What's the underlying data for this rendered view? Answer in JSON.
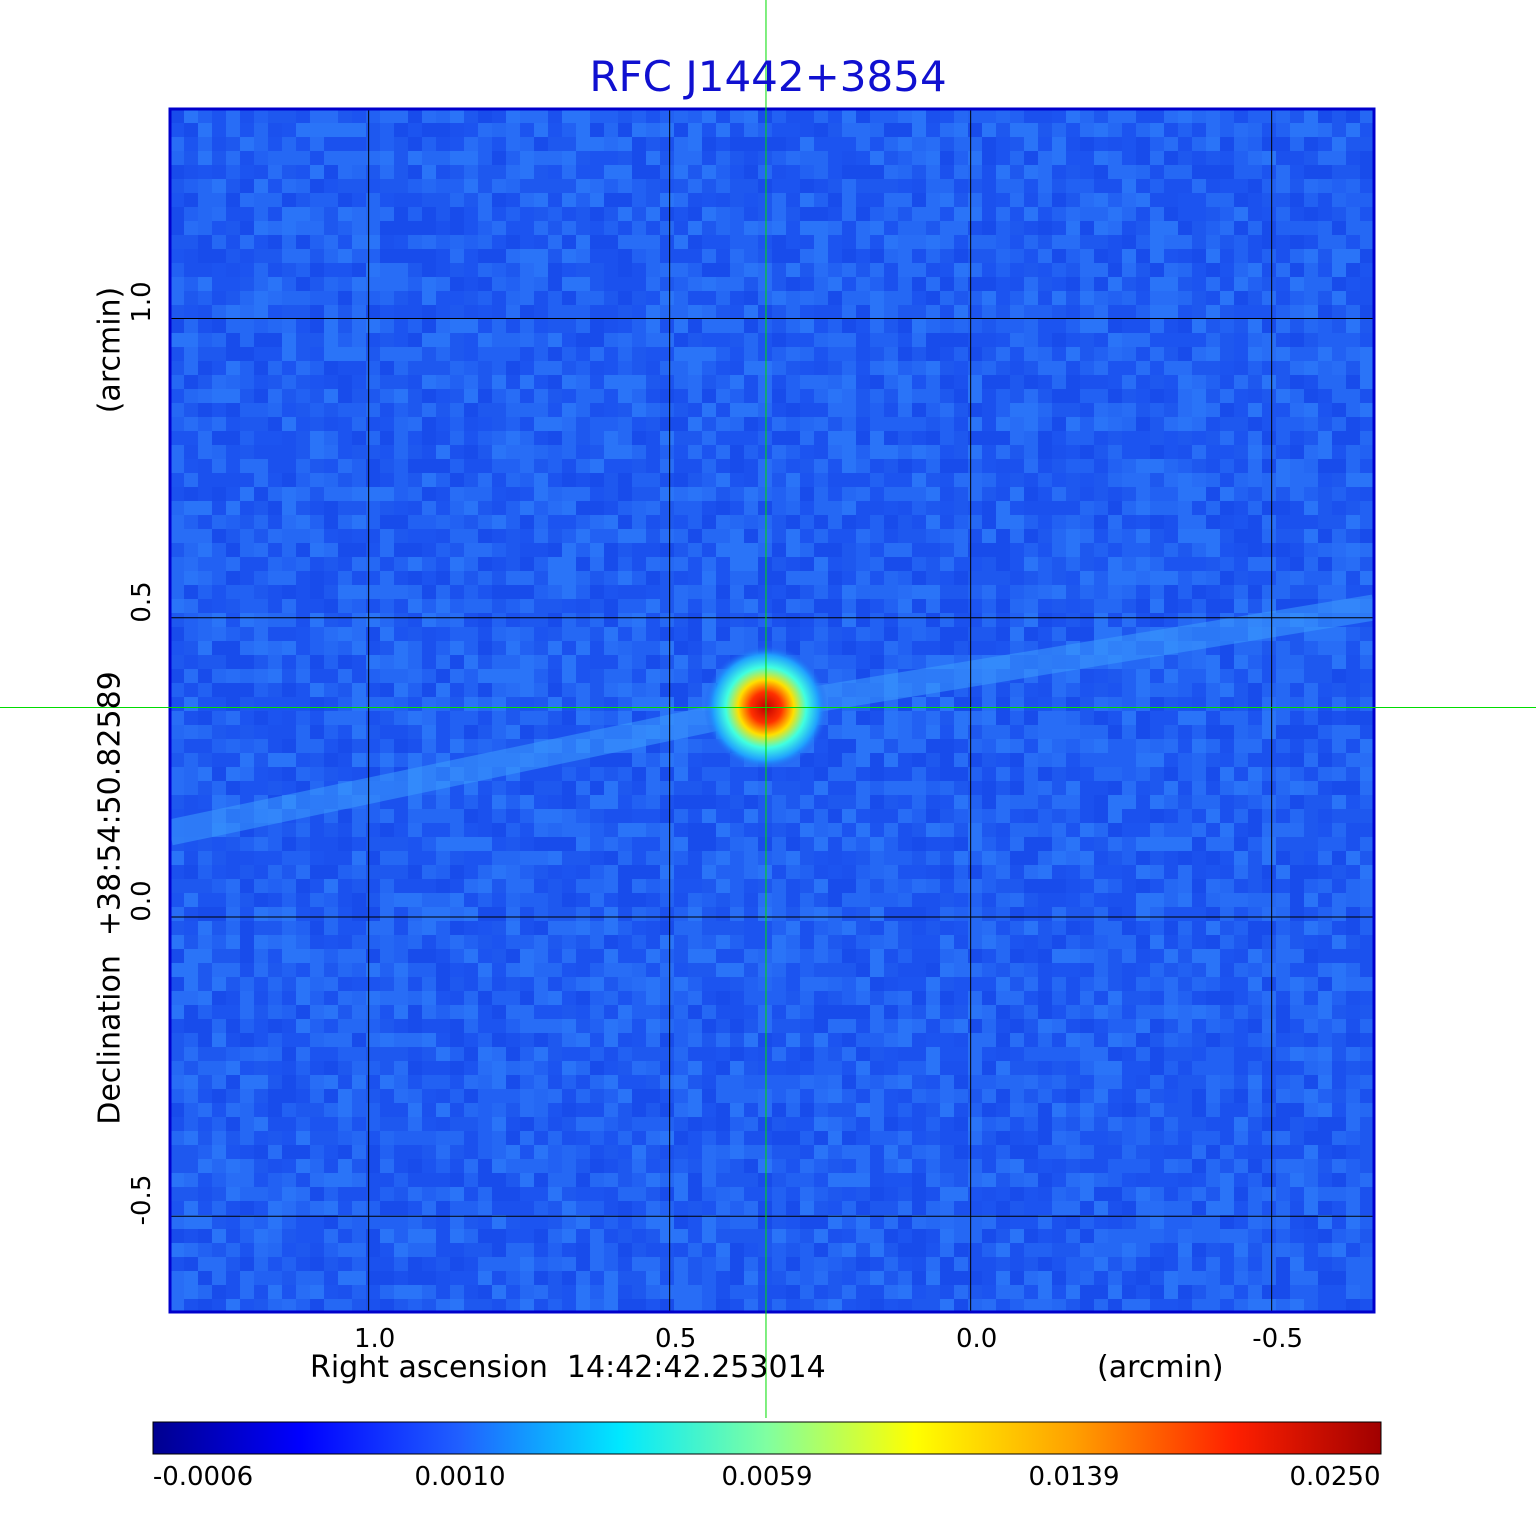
{
  "chart_data": {
    "type": "heatmap",
    "title": "RFC J1442+3854",
    "xlabel": "Right ascension  14:42:42.253014",
    "xunit": "(arcmin)",
    "ylabel": "Declination  +38:54:50.82589",
    "yunit": "(arcmin)",
    "x_ticks": [
      "1.0",
      "0.5",
      "0.0",
      "-0.5"
    ],
    "x_tick_values": [
      1.0,
      0.5,
      0.0,
      -0.5
    ],
    "y_ticks": [
      "1.0",
      "0.5",
      "0.0",
      "-0.5"
    ],
    "y_tick_values": [
      1.0,
      0.5,
      0.0,
      -0.5
    ],
    "xlim": [
      1.33,
      -0.67
    ],
    "ylim": [
      -0.66,
      1.35
    ],
    "grid": true,
    "crosshair": {
      "x": 0.34,
      "y": 0.35
    },
    "source_peak": {
      "x": 0.34,
      "y": 0.35,
      "value": 0.025
    },
    "colorbar": {
      "ticks": [
        "-0.0006",
        "0.0010",
        "0.0059",
        "0.0139",
        "0.0250"
      ],
      "tick_values": [
        -0.0006,
        0.001,
        0.0059,
        0.0139,
        0.025
      ],
      "colormap": "jet",
      "orientation": "horizontal"
    }
  },
  "colors": {
    "title": "#1010d0",
    "frame": "#0000cc",
    "grid": "#000000",
    "crosshair": "#00dd00",
    "background_field": "#1f5cf0"
  }
}
